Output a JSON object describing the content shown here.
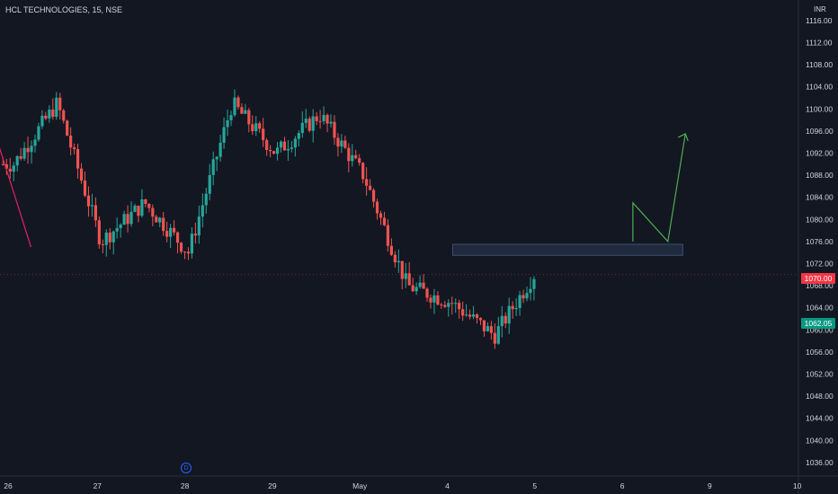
{
  "header": {
    "title": "HCL TECHNOLOGIES, 15, NSE",
    "currency": "INR"
  },
  "price_tags": {
    "current": "1070.00",
    "secondary": "1062.05"
  },
  "event_badge": "D",
  "colors": {
    "background": "#131722",
    "up": "#26a69a",
    "down": "#ef5350",
    "trendline": "#e91e63",
    "projection": "#4caf50",
    "zone": "#2a3a55"
  },
  "chart_data": {
    "type": "candlestick",
    "y_axis_ticks": [
      "1116.00",
      "1112.00",
      "1108.00",
      "1104.00",
      "1100.00",
      "1096.00",
      "1092.00",
      "1088.00",
      "1084.00",
      "1080.00",
      "1076.00",
      "1072.00",
      "1068.00",
      "1064.00",
      "1060.00",
      "1056.00",
      "1052.00",
      "1048.00",
      "1044.00",
      "1040.00",
      "1036.00"
    ],
    "x_axis_ticks": [
      "26",
      "27",
      "28",
      "29",
      "May",
      "4",
      "5",
      "6",
      "9",
      "10"
    ],
    "ylim": [
      1034.2,
      1117.6
    ],
    "approx_series_x_session": [
      0,
      0.5,
      1,
      1.5,
      2,
      2.5,
      3,
      3.5,
      4,
      4.5,
      5,
      5.5,
      5.95
    ],
    "approx_series_close": [
      1090,
      1101,
      1076,
      1083,
      1074,
      1101,
      1092,
      1099,
      1088,
      1068,
      1065,
      1059,
      1070
    ],
    "resistance_zone": [
      1073.5,
      1075.5
    ],
    "trendline_points": [
      [
        -0.3,
        1100
      ],
      [
        0.2,
        1075
      ]
    ],
    "projection_points": [
      [
        6.15,
        1083
      ],
      [
        6.55,
        1076
      ],
      [
        6.75,
        1096
      ]
    ]
  }
}
